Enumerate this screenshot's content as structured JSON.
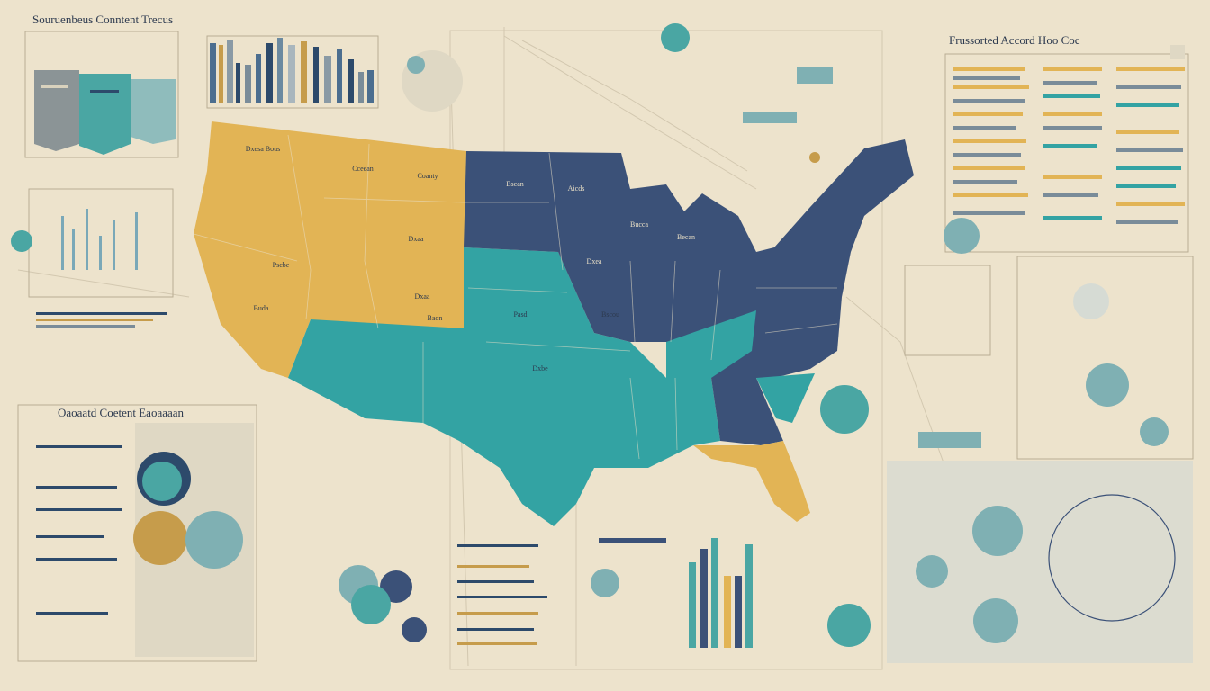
{
  "header": {
    "title": "Souruenbeus Conntent Trecus"
  },
  "right_panel": {
    "title": "Frussorted Accord Hoo Coc"
  },
  "left_panel": {
    "title": "Oaoaatd Coetent Eaoaaaan"
  },
  "map": {
    "labels": [
      "Dxesa Bous",
      "Coanty",
      "Buda",
      "Pscbe",
      "Dxaa",
      "Cceean",
      "Dxaa",
      "Baon",
      "Bscan",
      "Aicds",
      "Bucca",
      "Dxea",
      "Becan",
      "Pasd",
      "Dxbe",
      "Bscou"
    ]
  }
}
